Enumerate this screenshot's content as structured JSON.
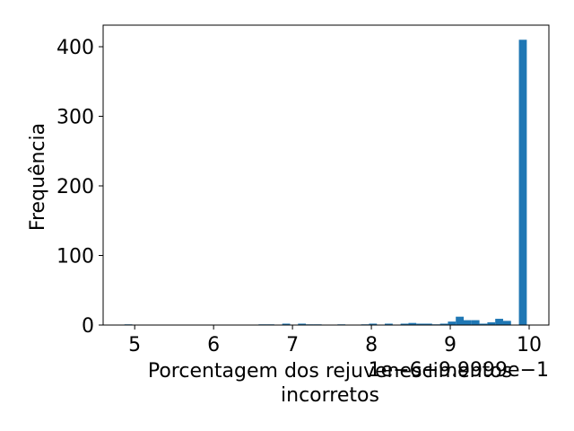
{
  "chart_data": {
    "type": "bar",
    "subtype": "histogram",
    "title": "",
    "xlabel": "Porcentagem dos rejuvenescimentos incorretos",
    "xlabel_lines": [
      "Porcentagem dos rejuvenescimentos",
      "incorretos"
    ],
    "ylabel": "Frequência",
    "x_offset_text": "1e−6+9.9999e−1",
    "x_ticks": [
      "5",
      "6",
      "7",
      "8",
      "9",
      "10"
    ],
    "y_ticks": [
      "0",
      "100",
      "200",
      "300",
      "400"
    ],
    "xlim": [
      4.6,
      10.25
    ],
    "ylim": [
      0,
      431
    ],
    "bin_width": 0.1,
    "bar_color": "#1f77b4",
    "grid": false,
    "legend": "none",
    "bins": [
      {
        "x": 4.87,
        "count": 1
      },
      {
        "x": 6.57,
        "count": 1
      },
      {
        "x": 6.67,
        "count": 1
      },
      {
        "x": 6.87,
        "count": 2
      },
      {
        "x": 7.07,
        "count": 2
      },
      {
        "x": 7.17,
        "count": 1
      },
      {
        "x": 7.27,
        "count": 1
      },
      {
        "x": 7.57,
        "count": 1
      },
      {
        "x": 7.87,
        "count": 1
      },
      {
        "x": 7.97,
        "count": 2
      },
      {
        "x": 8.17,
        "count": 2
      },
      {
        "x": 8.37,
        "count": 2
      },
      {
        "x": 8.47,
        "count": 3
      },
      {
        "x": 8.57,
        "count": 2
      },
      {
        "x": 8.67,
        "count": 2
      },
      {
        "x": 8.77,
        "count": 1
      },
      {
        "x": 8.87,
        "count": 2
      },
      {
        "x": 8.97,
        "count": 5
      },
      {
        "x": 9.07,
        "count": 12
      },
      {
        "x": 9.17,
        "count": 7
      },
      {
        "x": 9.27,
        "count": 7
      },
      {
        "x": 9.37,
        "count": 2
      },
      {
        "x": 9.47,
        "count": 4
      },
      {
        "x": 9.57,
        "count": 9
      },
      {
        "x": 9.67,
        "count": 6
      },
      {
        "x": 9.87,
        "count": 410
      }
    ]
  }
}
